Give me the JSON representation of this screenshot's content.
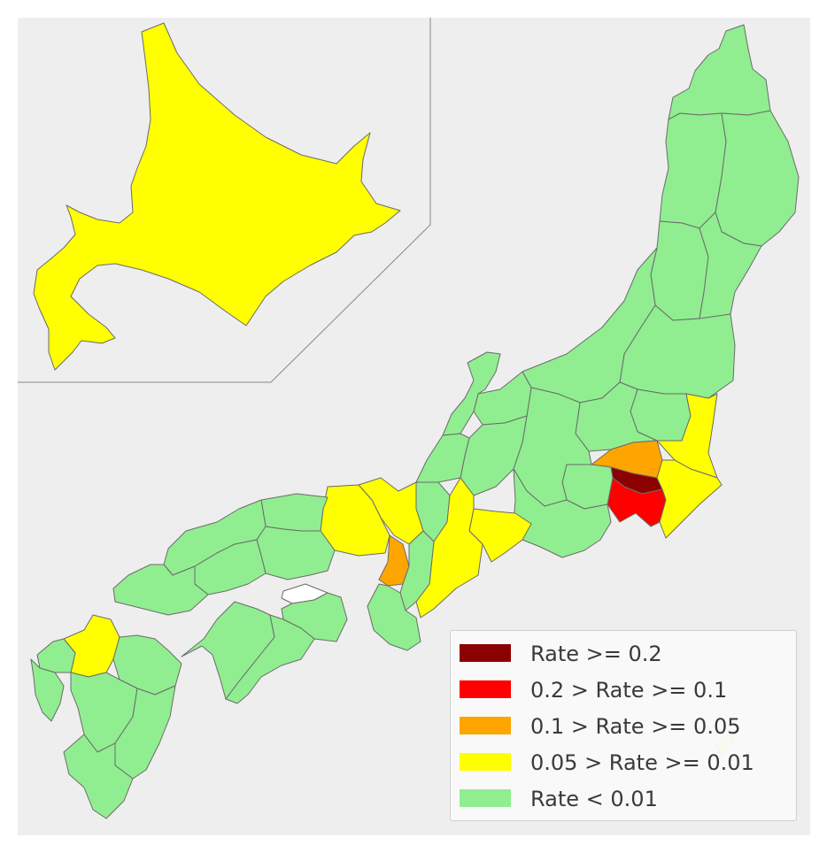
{
  "legend": {
    "items": [
      {
        "label": "Rate >= 0.2",
        "color": "#8b0000"
      },
      {
        "label": "0.2 > Rate >= 0.1",
        "color": "#ff0000"
      },
      {
        "label": "0.1 > Rate >= 0.05",
        "color": "#ffa500"
      },
      {
        "label": "0.05 > Rate >= 0.01",
        "color": "#ffff00"
      },
      {
        "label": "Rate < 0.01",
        "color": "#90ee90"
      }
    ]
  },
  "colors": {
    "background": "#eeeeee",
    "border": "#6b6b6b",
    "no_data": "#ffffff"
  }
}
